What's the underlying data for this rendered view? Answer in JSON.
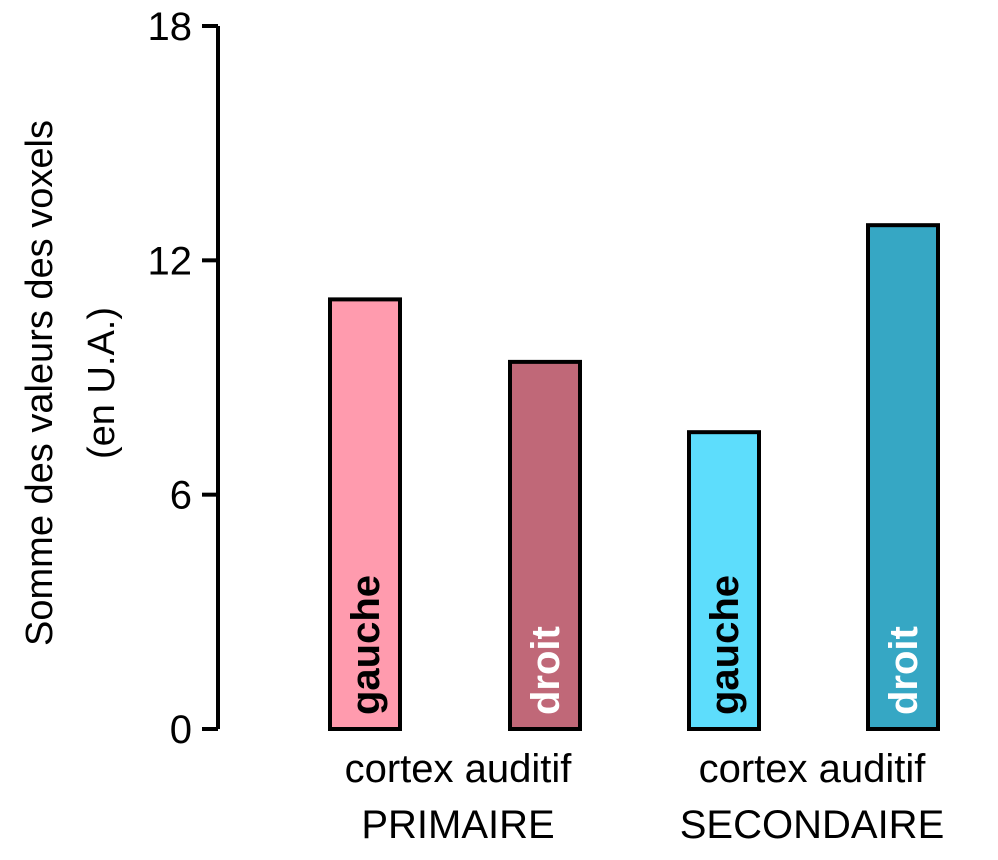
{
  "chart_data": {
    "type": "bar",
    "ylabel": "Somme des valeurs des voxels",
    "ylabel_unit": "(en U.A.)",
    "ylim": [
      0,
      18
    ],
    "yticks": [
      0,
      6,
      12,
      18
    ],
    "grid": false,
    "groups": [
      {
        "label_line1": "cortex auditif",
        "label_line2": "PRIMAIRE"
      },
      {
        "label_line1": "cortex auditif",
        "label_line2": "SECONDAIRE"
      }
    ],
    "bars": [
      {
        "group": 0,
        "label": "gauche",
        "value": 11.0,
        "color": "#FF9BAE",
        "label_color": "#000000"
      },
      {
        "group": 0,
        "label": "droit",
        "value": 9.4,
        "color": "#C06878",
        "label_color": "#ffffff"
      },
      {
        "group": 1,
        "label": "gauche",
        "value": 7.6,
        "color": "#5DDDFC",
        "label_color": "#000000"
      },
      {
        "group": 1,
        "label": "droit",
        "value": 12.9,
        "color": "#36A7C4",
        "label_color": "#ffffff"
      }
    ]
  }
}
